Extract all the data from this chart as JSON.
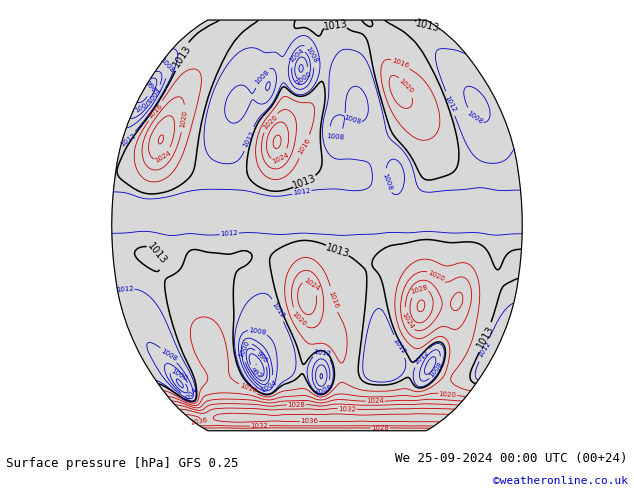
{
  "title_left": "Surface pressure [hPa] GFS 0.25",
  "title_right": "We 25-09-2024 00:00 UTC (00+24)",
  "copyright": "©weatheronline.co.uk",
  "copyright_color": "#0000cc",
  "background_color": "#ffffff",
  "map_ocean_color": "#d8d8d8",
  "map_land_color": "#c8e8c0",
  "map_boundary_color": "#aaaaaa",
  "contour_low_color": "#0000cc",
  "contour_high_color": "#cc0000",
  "contour_1013_color": "#000000",
  "contour_linewidth_low": 0.6,
  "contour_linewidth_high": 0.6,
  "contour_linewidth_1013": 1.1,
  "label_fontsize": 5,
  "footer_fontsize": 9,
  "pressure_min": 960,
  "pressure_max": 1064,
  "pressure_step": 4,
  "pressure_reference": 1013
}
